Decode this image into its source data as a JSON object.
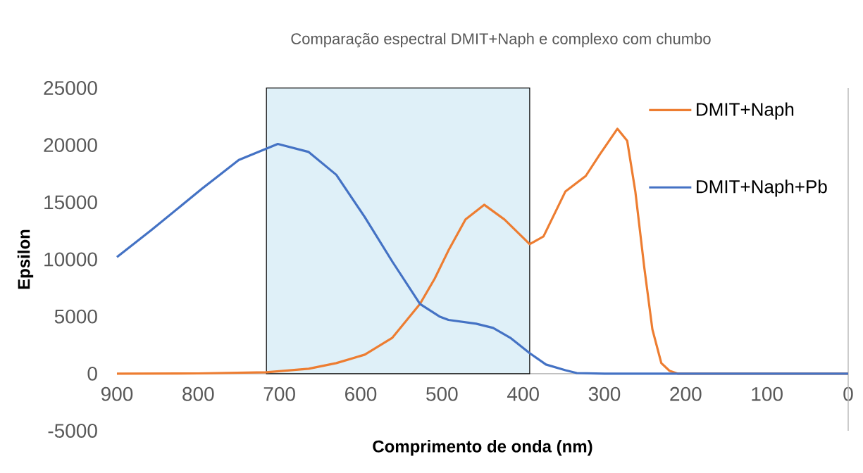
{
  "chart_data": {
    "type": "line",
    "title": "Comparação espectral DMIT+Naph e complexo com chumbo",
    "xlabel": "Comprimento de onda (nm)",
    "ylabel": "Epsilon",
    "xlim": [
      900,
      0
    ],
    "xticks": [
      900,
      800,
      700,
      600,
      500,
      400,
      300,
      200,
      100,
      0
    ],
    "ylim": [
      -5000,
      25000
    ],
    "yticks": [
      -5000,
      0,
      5000,
      10000,
      15000,
      20000,
      25000
    ],
    "series": [
      {
        "name": "DMIT+Naph",
        "color": "#ed7d31",
        "x": [
          900,
          800,
          716,
          664,
          630,
          595,
          561,
          527,
          509,
          492,
          471,
          448,
          423,
          392,
          375,
          348,
          323,
          306,
          284,
          272,
          262,
          251,
          241,
          230,
          220,
          210,
          100,
          0
        ],
        "values": [
          0,
          20,
          120,
          430,
          920,
          1660,
          3140,
          6100,
          8310,
          10780,
          13490,
          14780,
          13490,
          11330,
          12010,
          15950,
          17300,
          19150,
          21430,
          20380,
          15950,
          9300,
          3880,
          920,
          250,
          0,
          0,
          0
        ]
      },
      {
        "name": "DMIT+Naph+Pb",
        "color": "#4472c4",
        "x": [
          900,
          857,
          795,
          750,
          702,
          664,
          630,
          595,
          561,
          527,
          503,
          492,
          458,
          437,
          416,
          392,
          372,
          348,
          334,
          300,
          200,
          100,
          0
        ],
        "values": [
          10200,
          12600,
          16200,
          18700,
          20100,
          19400,
          17400,
          13700,
          9800,
          6100,
          5000,
          4700,
          4370,
          4000,
          3140,
          1790,
          800,
          300,
          50,
          0,
          0,
          0,
          0
        ]
      }
    ],
    "bands": [
      {
        "axis": "x",
        "from": 716,
        "to": 392,
        "color": "#dff0f8"
      }
    ],
    "legend": "top right"
  }
}
